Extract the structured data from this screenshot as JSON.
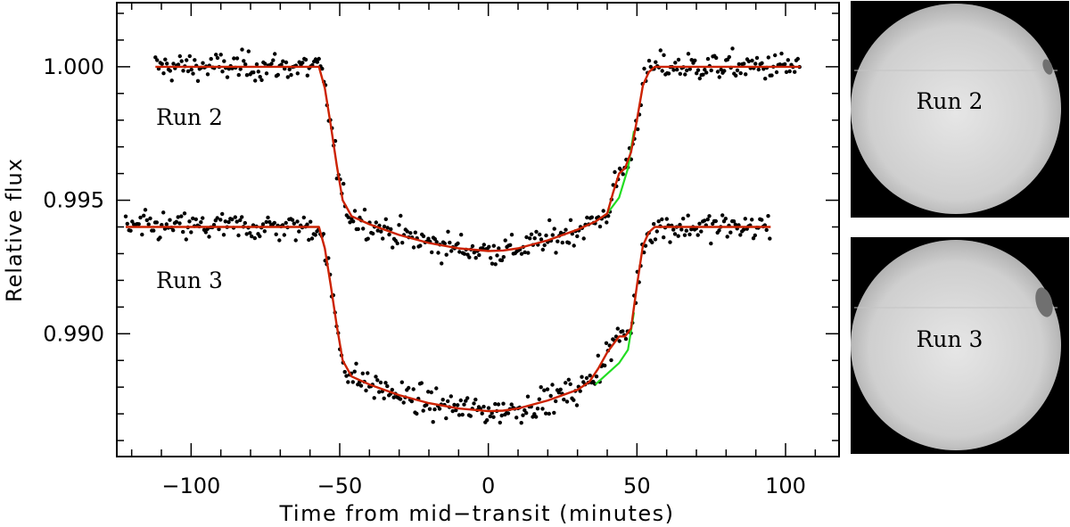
{
  "chart_data": {
    "type": "scatter",
    "xlabel": "Time from mid−transit (minutes)",
    "ylabel": "Relative flux",
    "xlim": [
      -125,
      118
    ],
    "ylim": [
      0.9854,
      1.0024
    ],
    "xticks": [
      -100,
      -50,
      0,
      50,
      100
    ],
    "xtick_labels": [
      "−100",
      "−50",
      "0",
      "50",
      "100"
    ],
    "yticks": [
      0.99,
      0.995,
      1.0
    ],
    "ytick_labels": [
      "0.990",
      "0.995",
      "1.000"
    ],
    "grid": false,
    "panels": [
      {
        "label": "Run 2",
        "offset": 0.0,
        "x_range": [
          -112,
          105
        ],
        "scatter": 0.00045,
        "model": {
          "x": [
            -112,
            -57,
            -55,
            -53,
            -51,
            -49,
            -46,
            -40,
            -30,
            -20,
            -10,
            0,
            5,
            10,
            20,
            30,
            36,
            40,
            42,
            44,
            46,
            48,
            50,
            52,
            54,
            56,
            58,
            105
          ],
          "y": [
            1.0,
            1.0,
            0.9992,
            0.9978,
            0.9963,
            0.995,
            0.9944,
            0.9941,
            0.9937,
            0.9934,
            0.9932,
            0.9931,
            0.99312,
            0.9932,
            0.9935,
            0.9939,
            0.9942,
            0.9945,
            0.9953,
            0.996,
            0.9962,
            0.9968,
            0.998,
            0.9993,
            0.9998,
            1.0,
            1.0,
            1.0
          ]
        },
        "spot_free_model": {
          "x": [
            36,
            40,
            44,
            47,
            49
          ],
          "y": [
            0.9942,
            0.9945,
            0.9951,
            0.9962,
            0.9976
          ]
        }
      },
      {
        "label": "Run 3",
        "offset": -0.006,
        "x_range": [
          -122,
          95
        ],
        "scatter": 0.00045,
        "model": {
          "x": [
            -122,
            -57,
            -55,
            -53,
            -51,
            -49,
            -46,
            -40,
            -30,
            -20,
            -10,
            0,
            5,
            10,
            20,
            30,
            34,
            37,
            40,
            42,
            44,
            46,
            48,
            50,
            52,
            54,
            56,
            95
          ],
          "y": [
            0.994,
            0.994,
            0.9932,
            0.9918,
            0.9903,
            0.989,
            0.9884,
            0.9881,
            0.9877,
            0.9874,
            0.9872,
            0.9871,
            0.98712,
            0.9872,
            0.9875,
            0.9879,
            0.9882,
            0.9887,
            0.9893,
            0.9896,
            0.9899,
            0.9899,
            0.9902,
            0.9918,
            0.9933,
            0.9938,
            0.994,
            0.994
          ]
        },
        "spot_free_model": {
          "x": [
            36,
            40,
            44,
            47,
            49
          ],
          "y": [
            0.9881,
            0.9885,
            0.9889,
            0.9894,
            0.9908
          ]
        }
      }
    ],
    "colors": {
      "points": "#000000",
      "model": "#cc2200",
      "spot_free_model": "#22dd22"
    }
  },
  "star_panels": [
    {
      "label": "Run 2"
    },
    {
      "label": "Run 3"
    }
  ],
  "colors": {
    "star_background": "#000000",
    "star_disk": "#d0d0d0",
    "spot": "#6e6e6e"
  }
}
